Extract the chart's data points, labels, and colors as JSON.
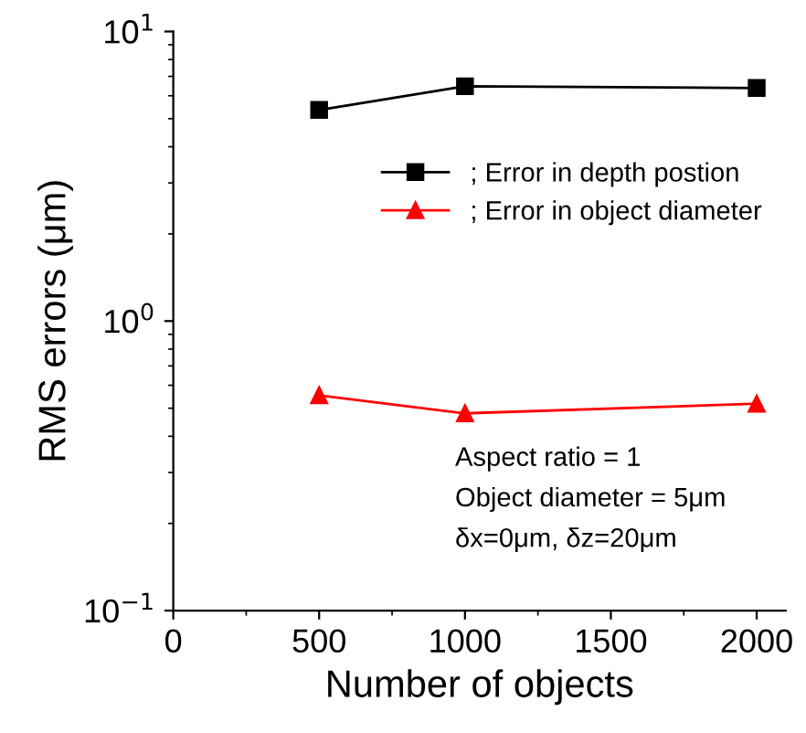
{
  "chart_data": {
    "type": "line",
    "xlabel": "Number of objects",
    "ylabel": "RMS errors (μm)",
    "x": [
      500,
      1000,
      2000
    ],
    "series": [
      {
        "name": "; Error in depth postion",
        "color": "#000000",
        "marker": "square",
        "values": [
          5.36,
          6.47,
          6.38
        ]
      },
      {
        "name": "; Error in object diameter",
        "color": "#ff0000",
        "marker": "triangle",
        "values": [
          0.554,
          0.48,
          0.518
        ]
      }
    ],
    "log": "y",
    "xlim": [
      0,
      2100
    ],
    "xticks": [
      0,
      500,
      1000,
      1500,
      2000
    ],
    "ylim": [
      0.1,
      10
    ],
    "yticks": [
      {
        "value": 0.1,
        "label": "10$^{−1}$"
      },
      {
        "value": 1,
        "label": "10$^{0}$"
      },
      {
        "value": 10,
        "label": "10$^{1}$"
      }
    ],
    "grid": false,
    "legend": "center right",
    "line_style": "solid",
    "annotations": [
      "Aspect ratio = 1",
      "Object diameter = 5μm",
      "δx=0μm, δz=20μm"
    ]
  }
}
